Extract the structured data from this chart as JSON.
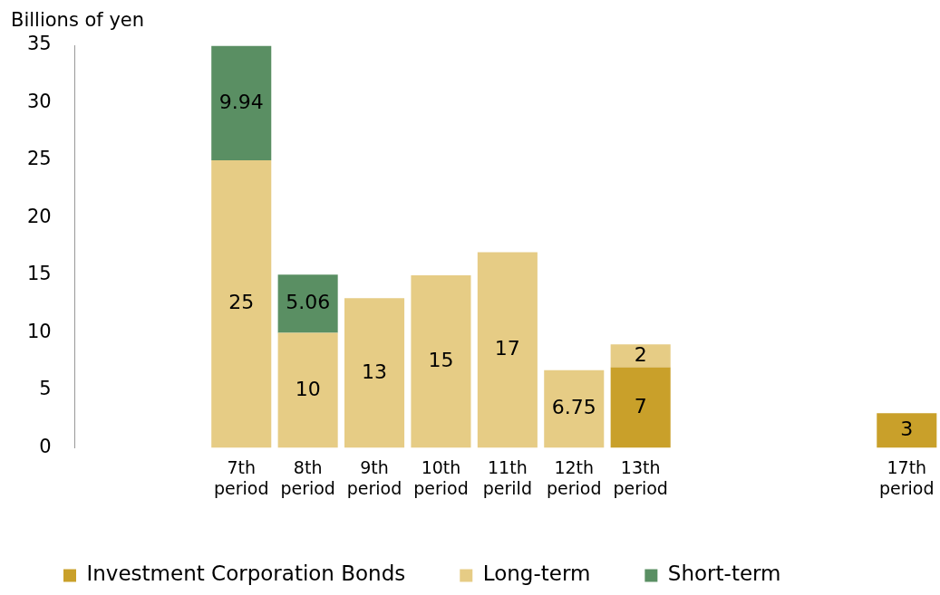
{
  "chart_data": {
    "type": "bar",
    "stacked": true,
    "ylabel": "Billions of yen",
    "categories": [
      null,
      null,
      "7th period",
      "8th period",
      "9th period",
      "10th period",
      "11th perild",
      "12th period",
      "13th period",
      null,
      null,
      null,
      "17th period"
    ],
    "series": [
      {
        "name": "Investment Corporation Bonds",
        "color": "#c9a02a",
        "values": [
          null,
          null,
          null,
          null,
          null,
          null,
          null,
          null,
          7,
          null,
          null,
          null,
          3
        ]
      },
      {
        "name": "Long-term",
        "color": "#e6cc85",
        "values": [
          null,
          null,
          25,
          10,
          13,
          15,
          17,
          6.75,
          2,
          null,
          null,
          null,
          null
        ]
      },
      {
        "name": "Short-term",
        "color": "#5a8f63",
        "values": [
          null,
          null,
          9.94,
          5.06,
          null,
          null,
          null,
          null,
          null,
          null,
          null,
          null,
          null
        ]
      }
    ],
    "ylim": [
      0,
      35
    ],
    "yticks": [
      0,
      5,
      10,
      15,
      20,
      25,
      30,
      35
    ],
    "grid": false,
    "legend": "bottom",
    "data_labels": true
  }
}
